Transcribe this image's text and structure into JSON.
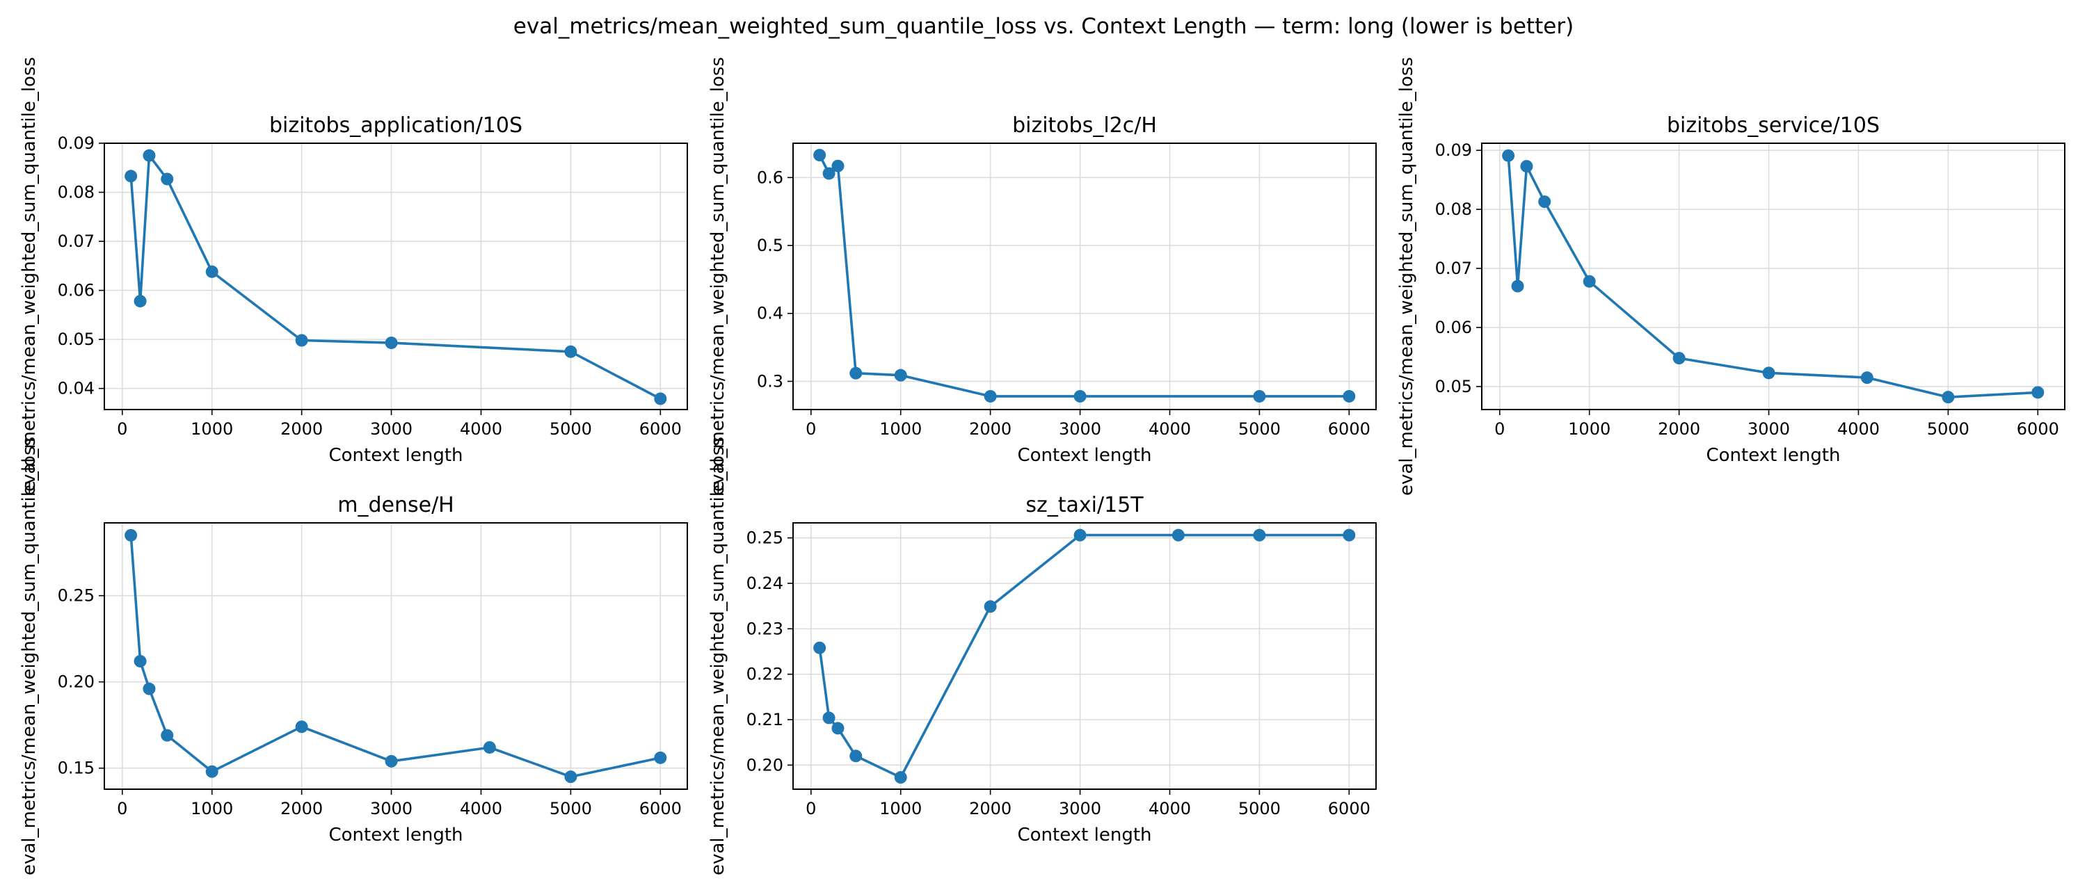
{
  "figure": {
    "suptitle": "eval_metrics/mean_weighted_sum_quantile_loss vs. Context Length — term: long (lower is better)"
  },
  "colors": {
    "series": "#1f77b4",
    "grid": "#dcdcdc",
    "axes": "#000000"
  },
  "chart_data": [
    {
      "type": "line",
      "title": "bizitobs_application/10S",
      "xlabel": "Context length",
      "ylabel": "eval_metrics/mean_weighted_sum_quantile_loss",
      "x": [
        96,
        200,
        300,
        500,
        1000,
        2000,
        3000,
        5000,
        6000
      ],
      "y": [
        0.0833,
        0.0578,
        0.0875,
        0.0827,
        0.0638,
        0.0498,
        0.0493,
        0.0475,
        0.0379
      ],
      "xlim": [
        -200,
        6300
      ],
      "ylim": [
        0.0357,
        0.09
      ],
      "xticks": [
        0,
        1000,
        2000,
        3000,
        4000,
        5000,
        6000
      ],
      "yticks": [
        0.04,
        0.05,
        0.06,
        0.07,
        0.08,
        0.09
      ],
      "yticklabels": [
        "0.04",
        "0.05",
        "0.06",
        "0.07",
        "0.08",
        "0.09"
      ],
      "grid": true,
      "marker": "circle"
    },
    {
      "type": "line",
      "title": "bizitobs_l2c/H",
      "xlabel": "Context length",
      "ylabel": "eval_metrics/mean_weighted_sum_quantile_loss",
      "x": [
        96,
        200,
        300,
        500,
        1000,
        2000,
        3000,
        5000,
        6000
      ],
      "y": [
        0.633,
        0.606,
        0.617,
        0.312,
        0.309,
        0.278,
        0.278,
        0.278,
        0.278
      ],
      "xlim": [
        -200,
        6300
      ],
      "ylim": [
        0.2585,
        0.6505
      ],
      "xticks": [
        0,
        1000,
        2000,
        3000,
        4000,
        5000,
        6000
      ],
      "yticks": [
        0.3,
        0.4,
        0.5,
        0.6
      ],
      "yticklabels": [
        "0.3",
        "0.4",
        "0.5",
        "0.6"
      ],
      "grid": true,
      "marker": "circle"
    },
    {
      "type": "line",
      "title": "bizitobs_service/10S",
      "xlabel": "Context length",
      "ylabel": "eval_metrics/mean_weighted_sum_quantile_loss",
      "x": [
        96,
        200,
        300,
        500,
        1000,
        2000,
        3000,
        4096,
        5000,
        6000
      ],
      "y": [
        0.0891,
        0.067,
        0.0873,
        0.0813,
        0.0678,
        0.0548,
        0.0523,
        0.0515,
        0.0482,
        0.049
      ],
      "xlim": [
        -200,
        6300
      ],
      "ylim": [
        0.0461,
        0.0912
      ],
      "xticks": [
        0,
        1000,
        2000,
        3000,
        4000,
        5000,
        6000
      ],
      "yticks": [
        0.05,
        0.06,
        0.07,
        0.08,
        0.09
      ],
      "yticklabels": [
        "0.05",
        "0.06",
        "0.07",
        "0.08",
        "0.09"
      ],
      "grid": true,
      "marker": "circle"
    },
    {
      "type": "line",
      "title": "m_dense/H",
      "xlabel": "Context length",
      "ylabel": "eval_metrics/mean_weighted_sum_quantile_loss",
      "x": [
        96,
        200,
        300,
        500,
        1000,
        2000,
        3000,
        4096,
        5000,
        6000
      ],
      "y": [
        0.285,
        0.212,
        0.196,
        0.169,
        0.148,
        0.174,
        0.154,
        0.162,
        0.145,
        0.156
      ],
      "xlim": [
        -200,
        6300
      ],
      "ylim": [
        0.1378,
        0.2922
      ],
      "xticks": [
        0,
        1000,
        2000,
        3000,
        4000,
        5000,
        6000
      ],
      "yticks": [
        0.15,
        0.2,
        0.25
      ],
      "yticklabels": [
        "0.15",
        "0.20",
        "0.25"
      ],
      "grid": true,
      "marker": "circle"
    },
    {
      "type": "line",
      "title": "sz_taxi/15T",
      "xlabel": "Context length",
      "ylabel": "eval_metrics/mean_weighted_sum_quantile_loss",
      "x": [
        96,
        200,
        300,
        500,
        1000,
        2000,
        3000,
        4096,
        5000,
        6000
      ],
      "y": [
        0.2258,
        0.2104,
        0.2081,
        0.202,
        0.1973,
        0.2349,
        0.2506,
        0.2506,
        0.2506,
        0.2506
      ],
      "xlim": [
        -200,
        6300
      ],
      "ylim": [
        0.1947,
        0.2533
      ],
      "xticks": [
        0,
        1000,
        2000,
        3000,
        4000,
        5000,
        6000
      ],
      "yticks": [
        0.2,
        0.21,
        0.22,
        0.23,
        0.24,
        0.25
      ],
      "yticklabels": [
        "0.20",
        "0.21",
        "0.22",
        "0.23",
        "0.24",
        "0.25"
      ],
      "grid": true,
      "marker": "circle"
    }
  ]
}
